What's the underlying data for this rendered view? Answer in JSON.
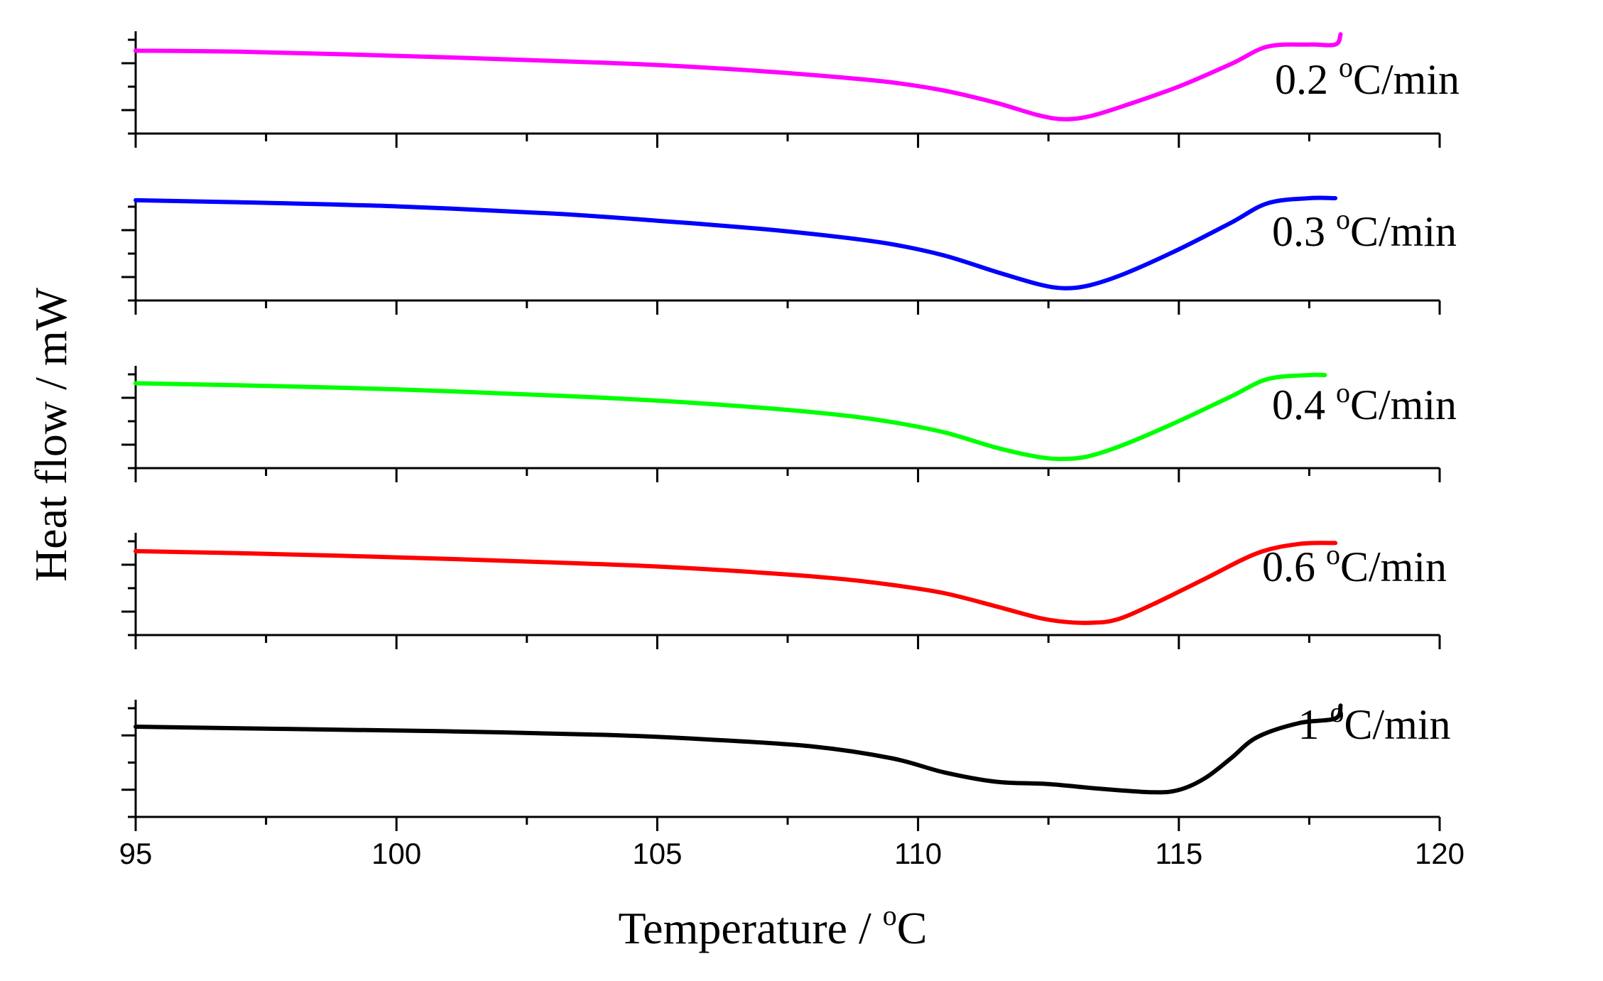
{
  "chart_data": {
    "type": "line",
    "layout": "stacked-panels",
    "title": "",
    "xlabel": "Temperature / °C",
    "xlabel_parts": {
      "main": "Temperature / ",
      "sup": "o",
      "unit": "C"
    },
    "ylabel": "Heat flow / mW",
    "xlim": [
      95,
      120
    ],
    "xticks": [
      95,
      100,
      105,
      110,
      115,
      120
    ],
    "xtick_labels": [
      "95",
      "100",
      "105",
      "110",
      "115",
      "120"
    ],
    "x_minor_step": 2.5,
    "yticks_shown": false,
    "grid": false,
    "series": [
      {
        "name": "0.2 °C/min",
        "label_parts": {
          "value": "0.2 ",
          "sup": "o",
          "unit": "C/min"
        },
        "color": "#ff00ff",
        "ylim": [
          0,
          1
        ],
        "x": [
          95,
          97,
          100,
          103,
          105,
          107,
          108.5,
          109.5,
          110.5,
          111.5,
          112.3,
          112.8,
          113.3,
          114,
          115,
          116,
          116.7,
          117.5,
          118,
          118.1
        ],
        "y": [
          0.81,
          0.8,
          0.76,
          0.71,
          0.67,
          0.61,
          0.55,
          0.5,
          0.42,
          0.3,
          0.18,
          0.14,
          0.17,
          0.28,
          0.46,
          0.68,
          0.85,
          0.87,
          0.87,
          0.97
        ]
      },
      {
        "name": "0.3 °C/min",
        "label_parts": {
          "value": "0.3 ",
          "sup": "o",
          "unit": "C/min"
        },
        "color": "#0000ff",
        "ylim": [
          0,
          1
        ],
        "x": [
          95,
          97,
          100,
          103,
          105,
          107,
          108.5,
          109.5,
          110.5,
          111.5,
          112.3,
          112.8,
          113.3,
          114,
          115,
          116,
          116.7,
          117.5,
          118
        ],
        "y": [
          0.98,
          0.96,
          0.92,
          0.85,
          0.78,
          0.7,
          0.62,
          0.55,
          0.44,
          0.28,
          0.16,
          0.12,
          0.15,
          0.27,
          0.5,
          0.76,
          0.95,
          1.0,
          1.0
        ]
      },
      {
        "name": "0.4 °C/min",
        "label_parts": {
          "value": "0.4 ",
          "sup": "o",
          "unit": "C/min"
        },
        "color": "#00ff00",
        "ylim": [
          0,
          1
        ],
        "x": [
          95,
          97,
          100,
          103,
          105,
          107,
          108.5,
          109.5,
          110.5,
          111.5,
          112.3,
          112.8,
          113.3,
          114,
          115,
          116,
          116.7,
          117.5,
          117.8
        ],
        "y": [
          0.83,
          0.81,
          0.77,
          0.71,
          0.66,
          0.59,
          0.52,
          0.45,
          0.35,
          0.2,
          0.11,
          0.09,
          0.12,
          0.24,
          0.46,
          0.7,
          0.87,
          0.91,
          0.91
        ]
      },
      {
        "name": "0.6 °C/min",
        "label_parts": {
          "value": "0.6 ",
          "sup": "o",
          "unit": "C/min"
        },
        "color": "#ff0000",
        "ylim": [
          0,
          1
        ],
        "x": [
          95,
          97,
          100,
          103,
          105,
          107,
          108.5,
          109.5,
          110.5,
          111.5,
          112.3,
          112.8,
          113.3,
          113.8,
          114.5,
          115.5,
          116.5,
          117.3,
          118
        ],
        "y": [
          0.82,
          0.8,
          0.76,
          0.71,
          0.67,
          0.61,
          0.55,
          0.49,
          0.41,
          0.28,
          0.17,
          0.13,
          0.12,
          0.15,
          0.3,
          0.55,
          0.8,
          0.89,
          0.9
        ]
      },
      {
        "name": "1 °C/min",
        "label_parts": {
          "value": "1 ",
          "sup": "o",
          "unit": "C/min"
        },
        "color": "#000000",
        "ylim": [
          0,
          1
        ],
        "x": [
          95,
          98,
          101,
          104,
          106,
          108,
          109.5,
          110.5,
          111.5,
          112.5,
          113.5,
          114.5,
          115,
          115.5,
          116,
          116.5,
          117.3,
          118,
          118.1
        ],
        "y": [
          0.77,
          0.75,
          0.73,
          0.7,
          0.66,
          0.6,
          0.5,
          0.38,
          0.3,
          0.28,
          0.24,
          0.21,
          0.23,
          0.33,
          0.5,
          0.68,
          0.8,
          0.84,
          0.95
        ]
      }
    ]
  }
}
